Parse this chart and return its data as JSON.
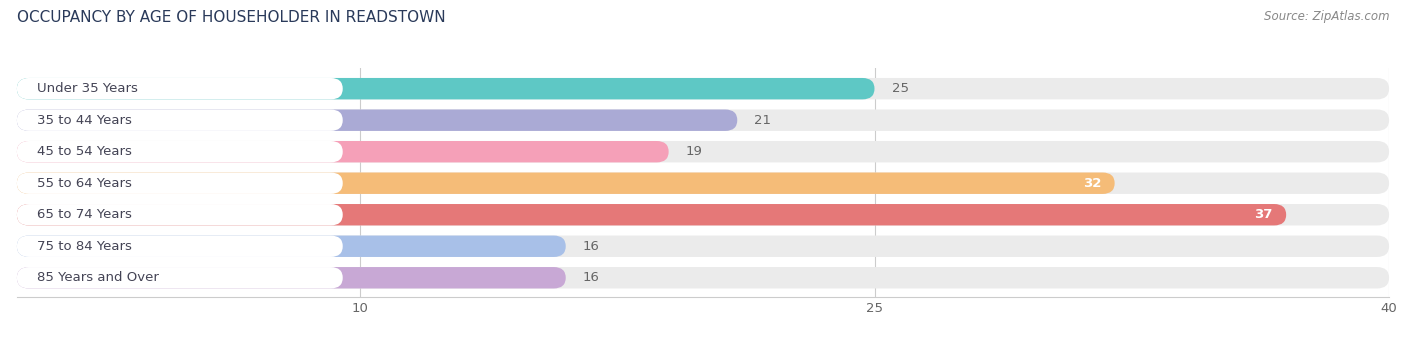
{
  "title": "OCCUPANCY BY AGE OF HOUSEHOLDER IN READSTOWN",
  "source": "Source: ZipAtlas.com",
  "categories": [
    "Under 35 Years",
    "35 to 44 Years",
    "45 to 54 Years",
    "55 to 64 Years",
    "65 to 74 Years",
    "75 to 84 Years",
    "85 Years and Over"
  ],
  "values": [
    25,
    21,
    19,
    32,
    37,
    16,
    16
  ],
  "bar_colors": [
    "#5ec8c5",
    "#aaaad5",
    "#f5a0b8",
    "#f5bc78",
    "#e57878",
    "#a8c0e8",
    "#c8a8d5"
  ],
  "bar_height": 0.68,
  "track_color": "#ebebeb",
  "label_bg_color": "#ffffff",
  "xlim": [
    0,
    40
  ],
  "xticks": [
    10,
    25,
    40
  ],
  "background_color": "#ffffff",
  "title_fontsize": 11,
  "label_fontsize": 9.5,
  "value_fontsize": 9.5,
  "source_fontsize": 8.5,
  "value_threshold": 30
}
